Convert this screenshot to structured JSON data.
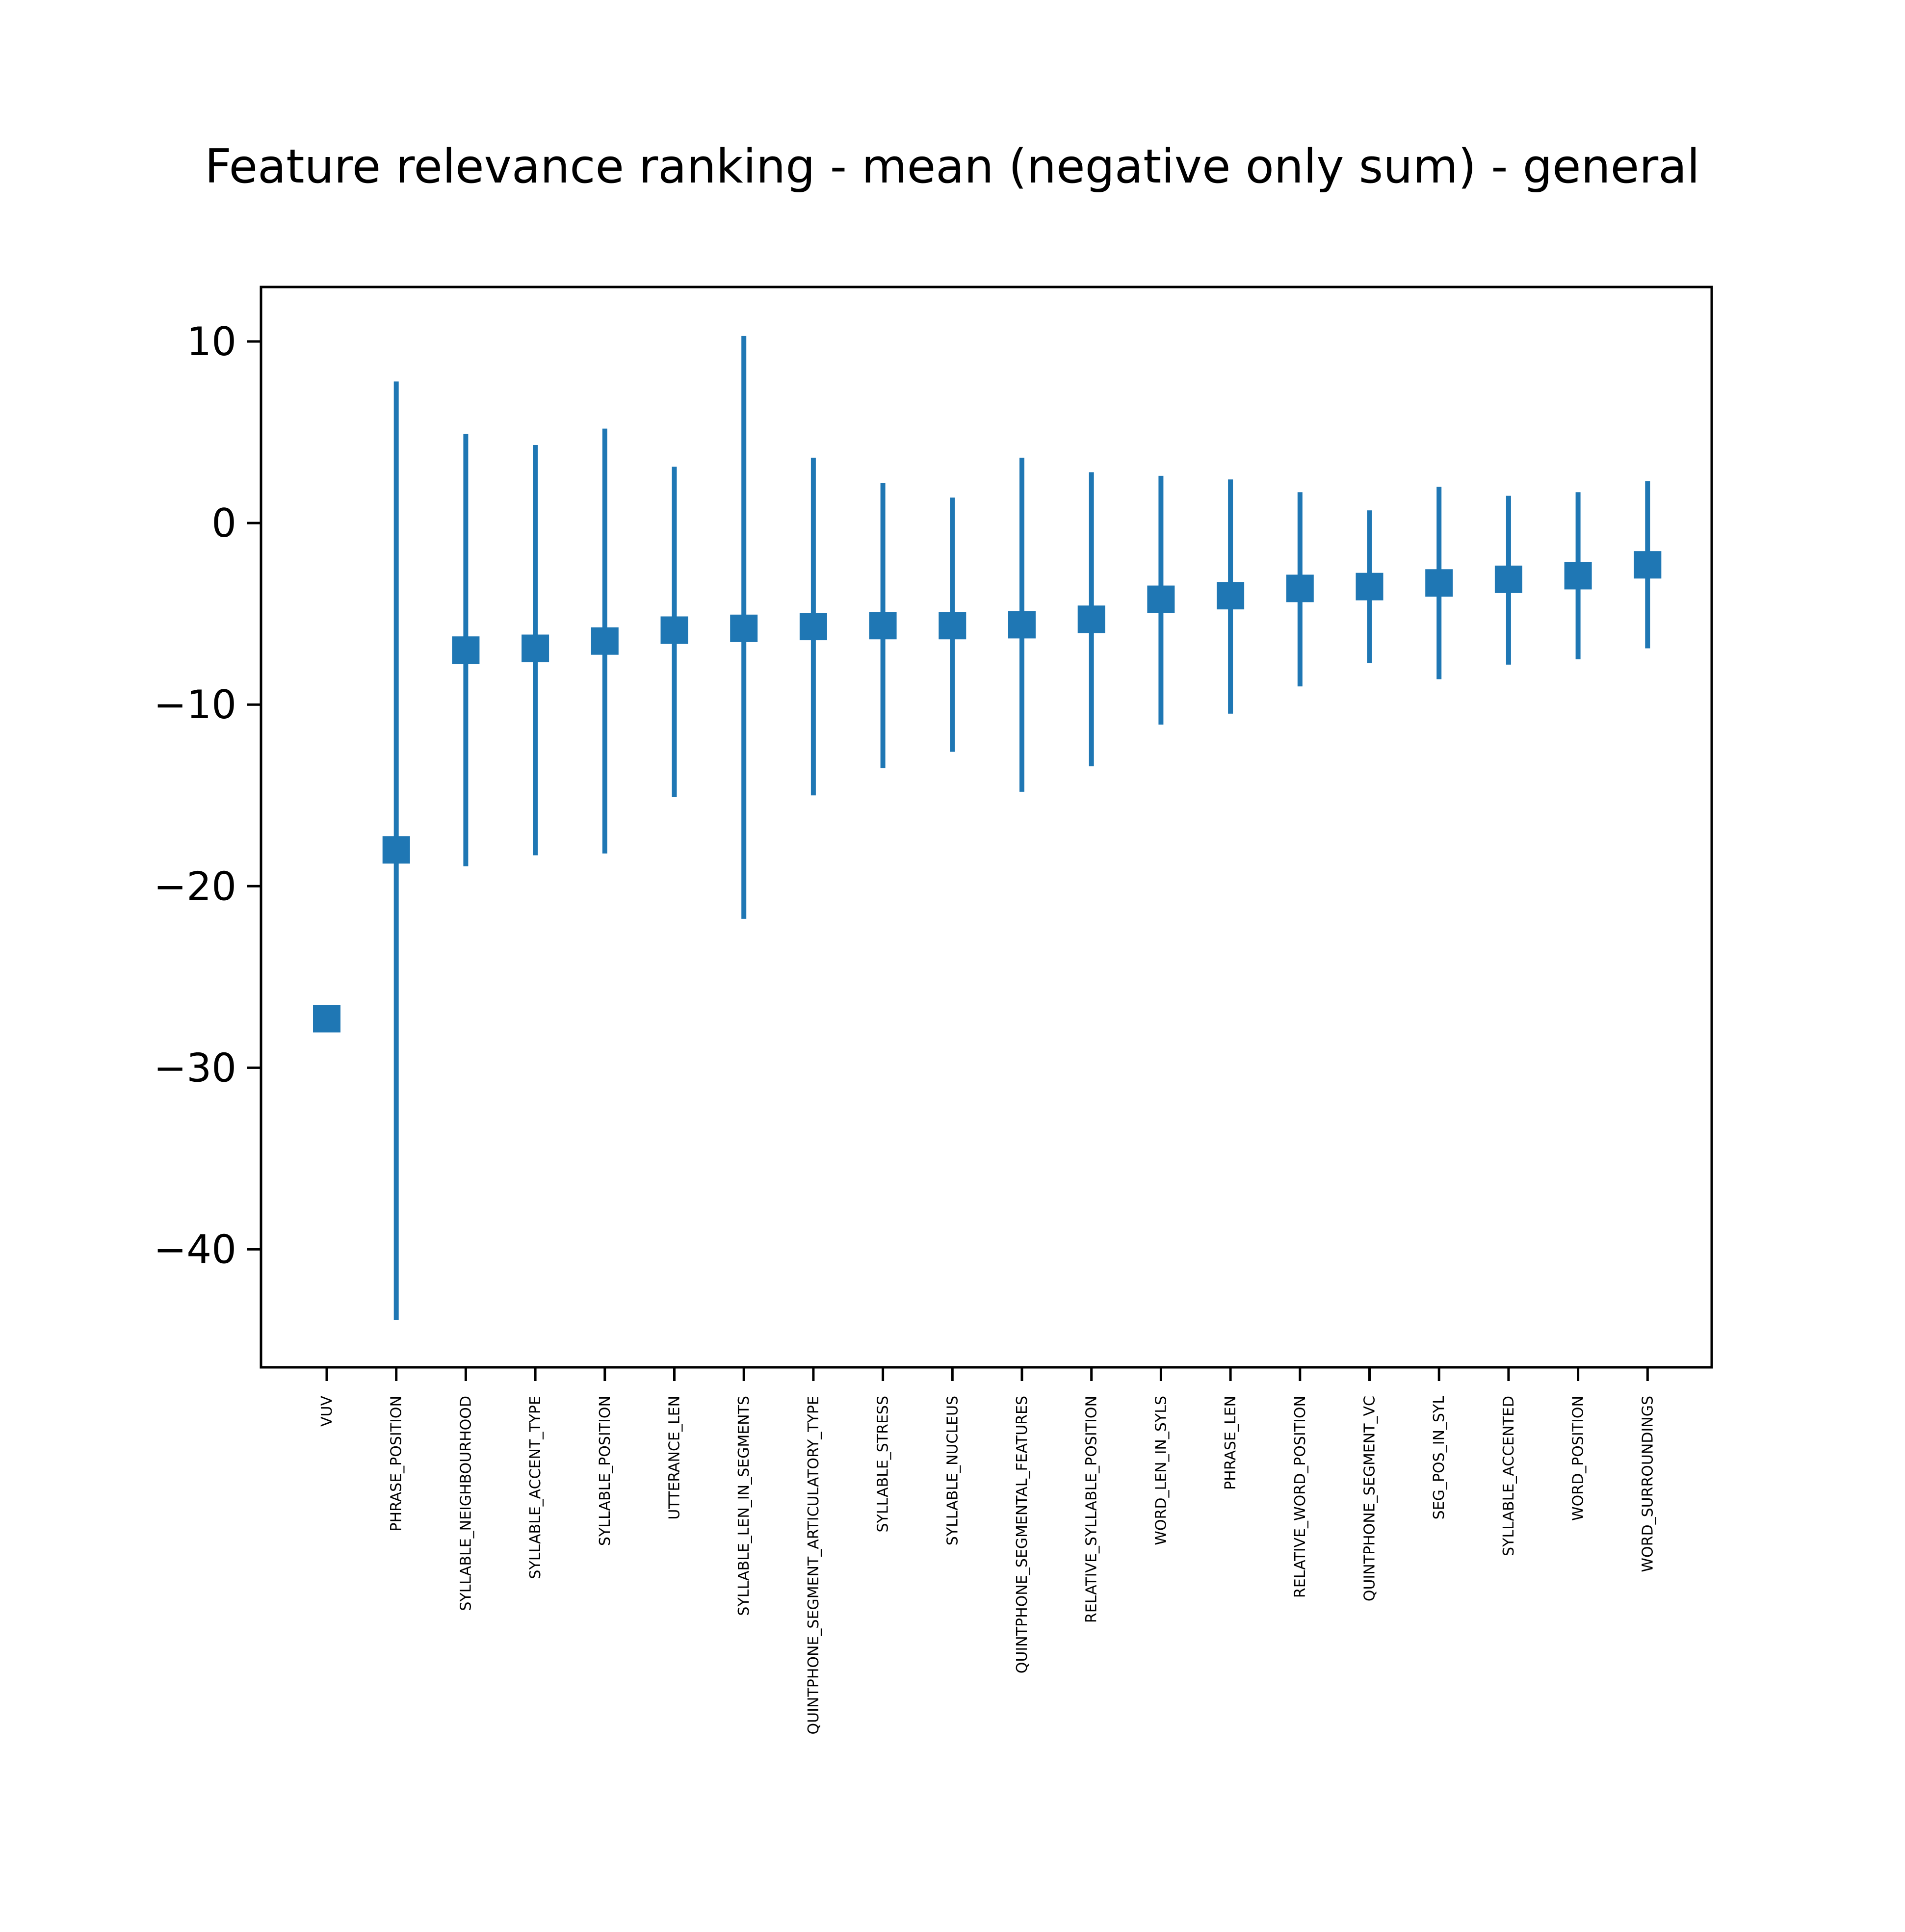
{
  "chart_data": {
    "type": "errorbar",
    "title": "Feature relevance ranking - mean (negative only sum) - general",
    "xlabel": "",
    "ylabel": "",
    "ylim": [
      -46.5,
      13
    ],
    "yticks": [
      10,
      0,
      -10,
      -20,
      -30,
      -40
    ],
    "ytick_labels": [
      "10",
      "0",
      "−10",
      "−20",
      "−30",
      "−40"
    ],
    "grid": false,
    "marker": "square",
    "color": "#1f77b4",
    "categories": [
      "VUV",
      "PHRASE_POSITION",
      "SYLLABLE_NEIGHBOURHOOD",
      "SYLLABLE_ACCENT_TYPE",
      "SYLLABLE_POSITION",
      "UTTERANCE_LEN",
      "SYLLABLE_LEN_IN_SEGMENTS",
      "QUINTPHONE_SEGMENT_ARTICULATORY_TYPE",
      "SYLLABLE_STRESS",
      "SYLLABLE_NUCLEUS",
      "QUINTPHONE_SEGMENTAL_FEATURES",
      "RELATIVE_SYLLABLE_POSITION",
      "WORD_LEN_IN_SYLS",
      "PHRASE_LEN",
      "RELATIVE_WORD_POSITION",
      "QUINTPHONE_SEGMENT_VC",
      "SEG_POS_IN_SYL",
      "SYLLABLE_ACCENTED",
      "WORD_POSITION",
      "WORD_SURROUNDINGS"
    ],
    "means": [
      -27.3,
      -18.0,
      -7.0,
      -6.9,
      -6.5,
      -5.9,
      -5.8,
      -5.7,
      -5.65,
      -5.65,
      -5.6,
      -5.3,
      -4.2,
      -4.0,
      -3.6,
      -3.5,
      -3.3,
      -3.1,
      -2.9,
      -2.3
    ],
    "lower": [
      -27.3,
      -43.9,
      -18.9,
      -18.3,
      -18.2,
      -15.1,
      -21.8,
      -15.0,
      -13.5,
      -12.6,
      -14.8,
      -13.4,
      -11.1,
      -10.5,
      -9.0,
      -7.7,
      -8.6,
      -7.8,
      -7.5,
      -6.9
    ],
    "upper": [
      -27.3,
      7.8,
      4.9,
      4.3,
      5.2,
      3.1,
      10.3,
      3.6,
      2.2,
      1.4,
      3.6,
      2.8,
      2.6,
      2.4,
      1.7,
      0.7,
      2.0,
      1.5,
      1.7,
      2.3
    ]
  }
}
